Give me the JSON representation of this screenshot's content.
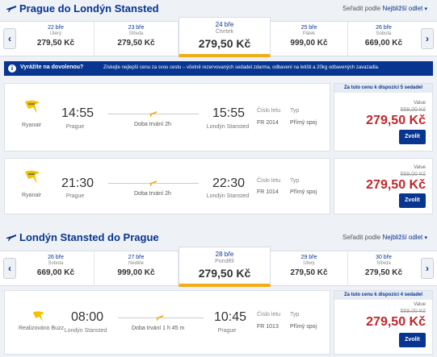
{
  "outbound": {
    "title": "Prague do Londýn Stansted",
    "sort_label": "Seřadit podle",
    "sort_value": "Nejbližší odlet",
    "dates": [
      {
        "day": "22 bře",
        "weekday": "Úterý",
        "price": "279,50 Kč"
      },
      {
        "day": "23 bře",
        "weekday": "Středa",
        "price": "279,50 Kč"
      },
      {
        "day": "24 bře",
        "weekday": "Čtvrtek",
        "price": "279,50 Kč",
        "selected": true
      },
      {
        "day": "25 bře",
        "weekday": "Pátek",
        "price": "999,00 Kč"
      },
      {
        "day": "26 bře",
        "weekday": "Sobota",
        "price": "669,00 Kč"
      }
    ]
  },
  "banner": {
    "icon": "info-icon",
    "heading": "Vyrážíte na dovolenou?",
    "text": "Získejte nejlepší cenu za svou cestu – včetně rezervovaných sedadel zdarma, odbavení na letišti a 20kg odbavených zavazadla."
  },
  "outbound_flights": [
    {
      "airline": "Ryanair",
      "dep_time": "14:55",
      "dep_city": "Prague",
      "duration": "Doba trvání 2h",
      "arr_time": "15:55",
      "arr_city": "Londýn Stansted",
      "flight_label": "Číslo letu",
      "flight_no": "FR 2014",
      "type_label": "Typ",
      "type": "Přímý spoj",
      "availability": "Za tuto cenu k dispozici 5 sedadel",
      "value_label": "Value",
      "old_price": "559,00 Kč",
      "price": "279,50 Kč",
      "select": "Zvolit"
    },
    {
      "airline": "Ryanair",
      "dep_time": "21:30",
      "dep_city": "Prague",
      "duration": "Doba trvání 2h",
      "arr_time": "22:30",
      "arr_city": "Londýn Stansted",
      "flight_label": "Číslo letu",
      "flight_no": "FR 1014",
      "type_label": "Typ",
      "type": "Přímý spoj",
      "value_label": "Value",
      "old_price": "559,00 Kč",
      "price": "279,50 Kč",
      "select": "Zvolit"
    }
  ],
  "inbound": {
    "title": "Londýn Stansted do Prague",
    "sort_label": "Seřadit podle",
    "sort_value": "Nejbližší odlet",
    "dates": [
      {
        "day": "26 bře",
        "weekday": "Sobota",
        "price": "669,00 Kč"
      },
      {
        "day": "27 bře",
        "weekday": "Neděle",
        "price": "999,00 Kč"
      },
      {
        "day": "28 bře",
        "weekday": "Pondělí",
        "price": "279,50 Kč",
        "selected": true
      },
      {
        "day": "29 bře",
        "weekday": "Úterý",
        "price": "279,50 Kč"
      },
      {
        "day": "30 bře",
        "weekday": "Středa",
        "price": "279,50 Kč"
      }
    ]
  },
  "inbound_flights": [
    {
      "airline": "Realizováno Buzz",
      "dep_time": "08:00",
      "dep_city": "Londýn Stansted",
      "duration": "Doba trvání 1 h 45 m",
      "arr_time": "10:45",
      "arr_city": "Prague",
      "flight_label": "Číslo letu",
      "flight_no": "FR 1013",
      "type_label": "Typ",
      "type": "Přímý spoj",
      "availability": "Za tuto cenu k dispozici 4 sedadel",
      "value_label": "Value",
      "old_price": "559,00 Kč",
      "price": "279,50 Kč",
      "select": "Zvolit"
    }
  ],
  "colors": {
    "brand": "#073590",
    "price": "#c0272d",
    "accent": "#f2ad14"
  }
}
